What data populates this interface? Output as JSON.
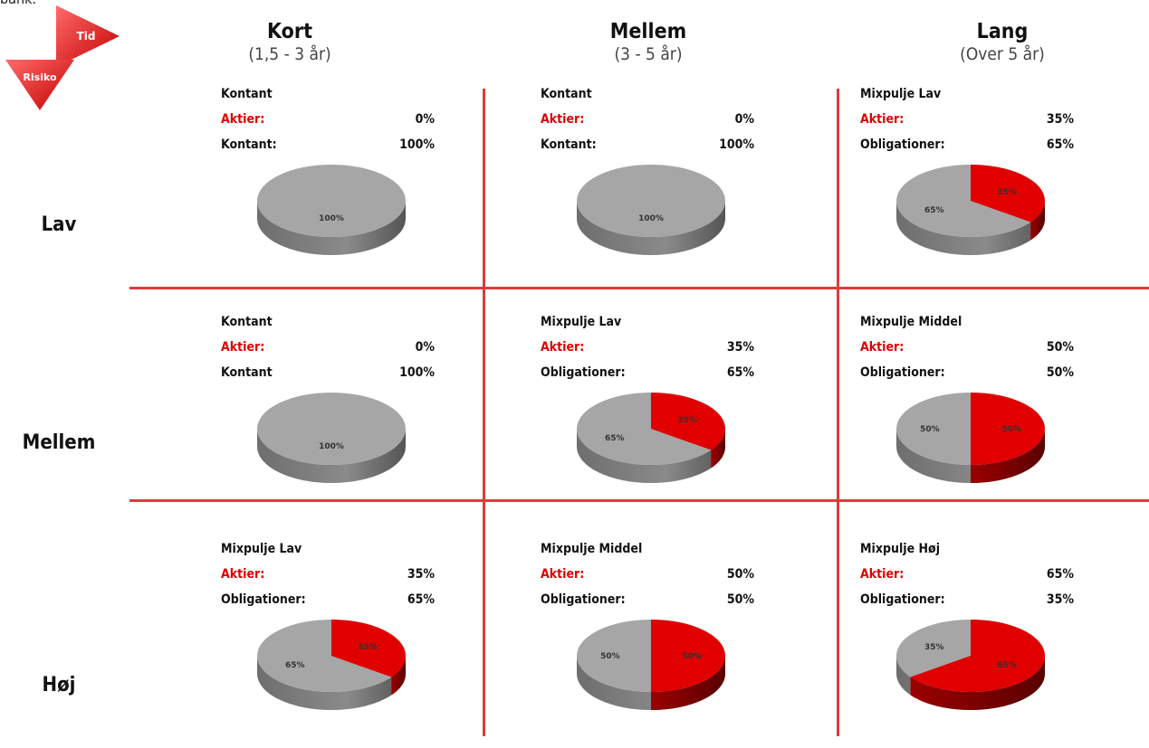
{
  "top_cut_text": "bank.",
  "corner": {
    "tid": "Tid",
    "risiko": "Risiko"
  },
  "colors": {
    "accent": "#e00000",
    "grid_line": "#e03a3a",
    "neutral": "#a6a6a6"
  },
  "columns": [
    {
      "title": "Kort",
      "sub": "(1,5 - 3 år)"
    },
    {
      "title": "Mellem",
      "sub": "(3 - 5 år)"
    },
    {
      "title": "Lang",
      "sub": "(Over 5 år)"
    }
  ],
  "rows": [
    {
      "label": "Lav"
    },
    {
      "label": "Mellem"
    },
    {
      "label": "Høj"
    }
  ],
  "cells": [
    [
      {
        "title": "Kontant",
        "k1": "Aktier:",
        "v1": "0%",
        "k2": "Kontant:",
        "v2": "100%"
      },
      {
        "title": "Kontant",
        "k1": "Aktier:",
        "v1": "0%",
        "k2": "Kontant:",
        "v2": "100%"
      },
      {
        "title": "Mixpulje Lav",
        "k1": "Aktier:",
        "v1": "35%",
        "k2": "Obligationer:",
        "v2": "65%"
      }
    ],
    [
      {
        "title": "Kontant",
        "k1": "Aktier:",
        "v1": "0%",
        "k2": "Kontant",
        "v2": "100%"
      },
      {
        "title": "Mixpulje Lav",
        "k1": "Aktier:",
        "v1": "35%",
        "k2": "Obligationer:",
        "v2": "65%"
      },
      {
        "title": "Mixpulje Middel",
        "k1": "Aktier:",
        "v1": "50%",
        "k2": "Obligationer:",
        "v2": "50%"
      }
    ],
    [
      {
        "title": "Mixpulje Lav",
        "k1": "Aktier:",
        "v1": "35%",
        "k2": "Obligationer:",
        "v2": "65%"
      },
      {
        "title": "Mixpulje Middel",
        "k1": "Aktier:",
        "v1": "50%",
        "k2": "Obligationer:",
        "v2": "50%"
      },
      {
        "title": "Mixpulje Høj",
        "k1": "Aktier:",
        "v1": "65%",
        "k2": "Obligationer:",
        "v2": "35%"
      }
    ]
  ],
  "chart_data": {
    "type": "pie",
    "charts": [
      {
        "row": "Lav",
        "col": "Kort",
        "title": "Kontant",
        "slices": [
          {
            "label": "Aktier",
            "value": 0,
            "text": "0%"
          },
          {
            "label": "Kontant",
            "value": 100,
            "text": "100%"
          }
        ]
      },
      {
        "row": "Lav",
        "col": "Mellem",
        "title": "Kontant",
        "slices": [
          {
            "label": "Aktier",
            "value": 0,
            "text": "0%"
          },
          {
            "label": "Kontant",
            "value": 100,
            "text": "100%"
          }
        ]
      },
      {
        "row": "Lav",
        "col": "Lang",
        "title": "Mixpulje Lav",
        "slices": [
          {
            "label": "Aktier",
            "value": 35,
            "text": "35%"
          },
          {
            "label": "Obligationer",
            "value": 65,
            "text": "65%"
          }
        ]
      },
      {
        "row": "Mellem",
        "col": "Kort",
        "title": "Kontant",
        "slices": [
          {
            "label": "Aktier",
            "value": 0,
            "text": "0%"
          },
          {
            "label": "Kontant",
            "value": 100,
            "text": "100%"
          }
        ]
      },
      {
        "row": "Mellem",
        "col": "Mellem",
        "title": "Mixpulje Lav",
        "slices": [
          {
            "label": "Aktier",
            "value": 35,
            "text": "35%"
          },
          {
            "label": "Obligationer",
            "value": 65,
            "text": "65%"
          }
        ]
      },
      {
        "row": "Mellem",
        "col": "Lang",
        "title": "Mixpulje Middel",
        "slices": [
          {
            "label": "Aktier",
            "value": 50,
            "text": "50%"
          },
          {
            "label": "Obligationer",
            "value": 50,
            "text": "50%"
          }
        ]
      },
      {
        "row": "Høj",
        "col": "Kort",
        "title": "Mixpulje Lav",
        "slices": [
          {
            "label": "Aktier",
            "value": 35,
            "text": "35%"
          },
          {
            "label": "Obligationer",
            "value": 65,
            "text": "65%"
          }
        ]
      },
      {
        "row": "Høj",
        "col": "Mellem",
        "title": "Mixpulje Middel",
        "slices": [
          {
            "label": "Aktier",
            "value": 50,
            "text": "50%"
          },
          {
            "label": "Obligationer",
            "value": 50,
            "text": "50%"
          }
        ]
      },
      {
        "row": "Høj",
        "col": "Lang",
        "title": "Mixpulje Høj",
        "slices": [
          {
            "label": "Aktier",
            "value": 65,
            "text": "65%"
          },
          {
            "label": "Obligationer",
            "value": 35,
            "text": "35%"
          }
        ]
      }
    ]
  }
}
